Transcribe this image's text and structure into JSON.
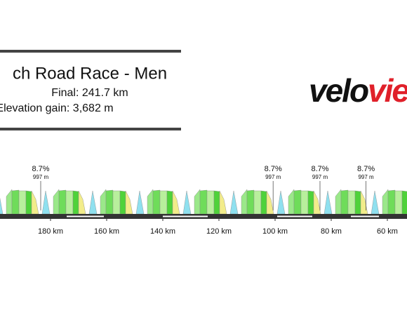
{
  "header": {
    "title": "ch Road Race - Men",
    "distance": "Final: 241.7 km",
    "elevation_gain": "Elevation gain: 3,682 m"
  },
  "logo": {
    "part1": "velo",
    "part2": "vie"
  },
  "chart_data": {
    "type": "profile",
    "xlim": [
      198,
      53
    ],
    "xticks": [
      {
        "value": 180,
        "label": "180 km"
      },
      {
        "value": 160,
        "label": "160 km"
      },
      {
        "value": 140,
        "label": "140 km"
      },
      {
        "value": 120,
        "label": "120 km"
      },
      {
        "value": 100,
        "label": "100 km"
      },
      {
        "value": 80,
        "label": "80 km"
      },
      {
        "value": 60,
        "label": "60 km"
      }
    ],
    "climbs": [
      {
        "km": 183.5,
        "grade": "8.7%",
        "elevation": "997 m"
      },
      {
        "km": 100.7,
        "grade": "8.7%",
        "elevation": "997 m"
      },
      {
        "km": 84,
        "grade": "8.7%",
        "elevation": "997 m"
      },
      {
        "km": 67.6,
        "grade": "8.7%",
        "elevation": "997 m"
      }
    ]
  }
}
